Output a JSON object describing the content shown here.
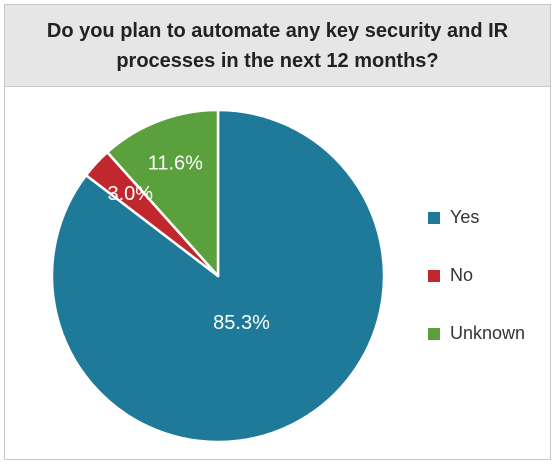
{
  "chart_data": {
    "type": "pie",
    "title": "Do you plan to automate any key security and IR processes in the next 12 months?",
    "categories": [
      "Yes",
      "No",
      "Unknown"
    ],
    "values": [
      85.3,
      3.0,
      11.6
    ],
    "labels": [
      "85.3%",
      "3.0%",
      "11.6%"
    ],
    "colors": [
      "#1f7a99",
      "#c0282d",
      "#5aa03c"
    ],
    "legend_position": "right"
  }
}
